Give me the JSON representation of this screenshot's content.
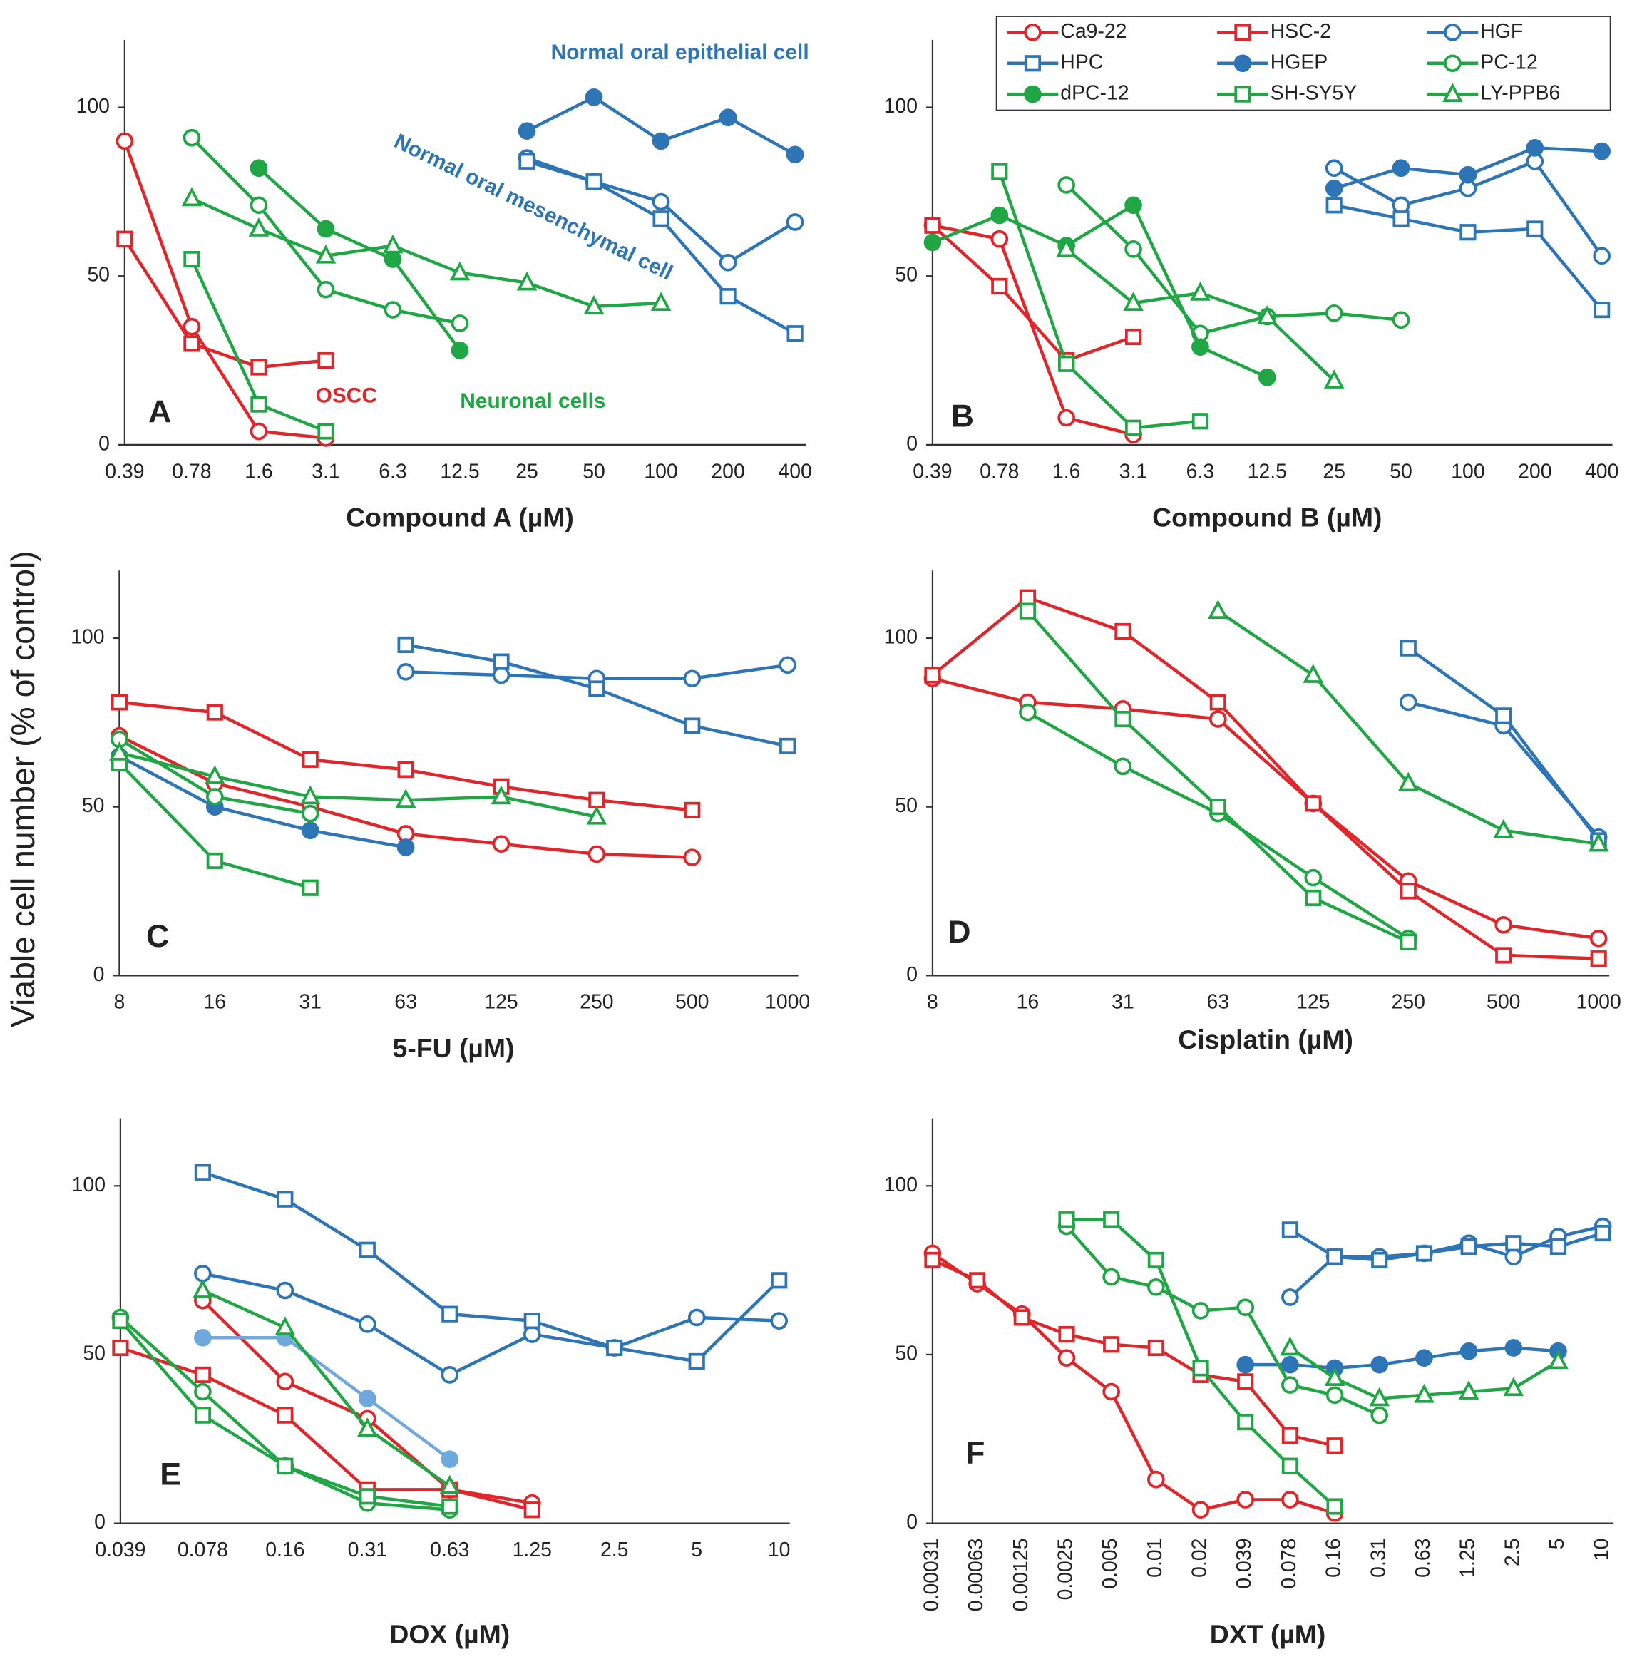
{
  "ylabel": "Viable cell number (% of control)",
  "chart_data": [
    {
      "type": "line",
      "label": "A",
      "xlabel": "Compound A (µM)",
      "categories": [
        "0.39",
        "0.78",
        "1.6",
        "3.1",
        "6.3",
        "12.5",
        "25",
        "50",
        "100",
        "200",
        "400"
      ],
      "ylim": [
        0,
        120
      ],
      "yticks": [
        0,
        50,
        100
      ],
      "annotations": [
        {
          "text": "Normal oral epithelial cell",
          "color": "#2e75b6"
        },
        {
          "text": "Normal oral mesenchymal cell",
          "color": "#2e75b6"
        },
        {
          "text": "OSCC",
          "color": "#e0262a"
        },
        {
          "text": "Neuronal cells",
          "color": "#21a645"
        }
      ],
      "series": [
        {
          "name": "Ca9-22",
          "color": "#e0262a",
          "marker": "circle-open",
          "values": [
            90,
            35,
            4,
            2,
            null,
            null,
            null,
            null,
            null,
            null,
            null
          ]
        },
        {
          "name": "HSC-2",
          "color": "#e0262a",
          "marker": "square-open",
          "values": [
            61,
            30,
            23,
            25,
            null,
            null,
            null,
            null,
            null,
            null,
            null
          ]
        },
        {
          "name": "HGF",
          "color": "#2e75b6",
          "marker": "circle-open",
          "values": [
            null,
            null,
            null,
            null,
            null,
            null,
            85,
            78,
            72,
            54,
            66
          ]
        },
        {
          "name": "HPC",
          "color": "#2e75b6",
          "marker": "square-open",
          "values": [
            null,
            null,
            null,
            null,
            null,
            null,
            84,
            78,
            67,
            44,
            33
          ]
        },
        {
          "name": "HGEP",
          "color": "#2e75b6",
          "marker": "circle-filled",
          "values": [
            null,
            null,
            null,
            null,
            null,
            null,
            93,
            103,
            90,
            97,
            86
          ]
        },
        {
          "name": "PC-12",
          "color": "#21a645",
          "marker": "circle-open",
          "values": [
            null,
            91,
            71,
            46,
            40,
            36,
            null,
            null,
            null,
            null,
            null
          ]
        },
        {
          "name": "dPC-12",
          "color": "#21a645",
          "marker": "circle-filled",
          "values": [
            null,
            null,
            82,
            64,
            55,
            28,
            null,
            null,
            null,
            null,
            null
          ]
        },
        {
          "name": "SH-SY5Y",
          "color": "#21a645",
          "marker": "square-open",
          "values": [
            null,
            55,
            12,
            4,
            null,
            null,
            null,
            null,
            null,
            null,
            null
          ]
        },
        {
          "name": "LY-PPB6",
          "color": "#21a645",
          "marker": "triangle-open",
          "values": [
            null,
            73,
            64,
            56,
            59,
            51,
            48,
            41,
            42,
            null,
            null
          ]
        }
      ]
    },
    {
      "type": "line",
      "label": "B",
      "xlabel": "Compound B (µM)",
      "categories": [
        "0.39",
        "0.78",
        "1.6",
        "3.1",
        "6.3",
        "12.5",
        "25",
        "50",
        "100",
        "200",
        "400"
      ],
      "ylim": [
        0,
        120
      ],
      "yticks": [
        0,
        50,
        100
      ],
      "legend": true,
      "series": [
        {
          "name": "Ca9-22",
          "color": "#e0262a",
          "marker": "circle-open",
          "values": [
            65,
            61,
            8,
            3,
            null,
            null,
            null,
            null,
            null,
            null,
            null
          ]
        },
        {
          "name": "HSC-2",
          "color": "#e0262a",
          "marker": "square-open",
          "values": [
            65,
            47,
            25,
            32,
            null,
            null,
            null,
            null,
            null,
            null,
            null
          ]
        },
        {
          "name": "HGF",
          "color": "#2e75b6",
          "marker": "circle-open",
          "values": [
            null,
            null,
            null,
            null,
            null,
            null,
            82,
            71,
            76,
            84,
            56
          ]
        },
        {
          "name": "HPC",
          "color": "#2e75b6",
          "marker": "square-open",
          "values": [
            null,
            null,
            null,
            null,
            null,
            null,
            71,
            67,
            63,
            64,
            40
          ]
        },
        {
          "name": "HGEP",
          "color": "#2e75b6",
          "marker": "circle-filled",
          "values": [
            null,
            null,
            null,
            null,
            null,
            null,
            76,
            82,
            80,
            88,
            87
          ]
        },
        {
          "name": "PC-12",
          "color": "#21a645",
          "marker": "circle-open",
          "values": [
            null,
            null,
            77,
            58,
            33,
            38,
            39,
            37,
            null,
            null,
            null
          ]
        },
        {
          "name": "dPC-12",
          "color": "#21a645",
          "marker": "circle-filled",
          "values": [
            60,
            68,
            59,
            71,
            29,
            20,
            null,
            null,
            null,
            null,
            null
          ]
        },
        {
          "name": "SH-SY5Y",
          "color": "#21a645",
          "marker": "square-open",
          "values": [
            null,
            81,
            24,
            5,
            7,
            null,
            null,
            null,
            null,
            null,
            null
          ]
        },
        {
          "name": "LY-PPB6",
          "color": "#21a645",
          "marker": "triangle-open",
          "values": [
            null,
            null,
            58,
            42,
            45,
            38,
            19,
            null,
            null,
            null,
            null
          ]
        }
      ]
    },
    {
      "type": "line",
      "label": "C",
      "xlabel": "5-FU (µM)",
      "categories": [
        "8",
        "16",
        "31",
        "63",
        "125",
        "250",
        "500",
        "1000"
      ],
      "ylim": [
        0,
        120
      ],
      "yticks": [
        0,
        50,
        100
      ],
      "series": [
        {
          "name": "Ca9-22",
          "color": "#e0262a",
          "marker": "circle-open",
          "values": [
            71,
            57,
            50,
            42,
            39,
            36,
            35,
            null
          ]
        },
        {
          "name": "HSC-2",
          "color": "#e0262a",
          "marker": "square-open",
          "values": [
            81,
            78,
            64,
            61,
            56,
            52,
            49,
            null
          ]
        },
        {
          "name": "HGF",
          "color": "#2e75b6",
          "marker": "circle-open",
          "values": [
            null,
            null,
            null,
            90,
            89,
            88,
            88,
            92
          ]
        },
        {
          "name": "HPC",
          "color": "#2e75b6",
          "marker": "square-open",
          "values": [
            null,
            null,
            null,
            98,
            93,
            85,
            74,
            68
          ]
        },
        {
          "name": "HGEP",
          "color": "#2e75b6",
          "marker": "circle-filled",
          "values": [
            65,
            50,
            43,
            38,
            null,
            null,
            null,
            null
          ]
        },
        {
          "name": "PC-12",
          "color": "#21a645",
          "marker": "circle-open",
          "values": [
            70,
            53,
            48,
            null,
            null,
            null,
            null,
            null
          ]
        },
        {
          "name": "SH-SY5Y",
          "color": "#21a645",
          "marker": "square-open",
          "values": [
            63,
            34,
            26,
            null,
            null,
            null,
            null,
            null
          ]
        },
        {
          "name": "LY-PPB6",
          "color": "#21a645",
          "marker": "triangle-open",
          "values": [
            66,
            59,
            53,
            52,
            53,
            47,
            null,
            null
          ]
        }
      ]
    },
    {
      "type": "line",
      "label": "D",
      "xlabel": "Cisplatin (µM)",
      "categories": [
        "8",
        "16",
        "31",
        "63",
        "125",
        "250",
        "500",
        "1000"
      ],
      "ylim": [
        0,
        120
      ],
      "yticks": [
        0,
        50,
        100
      ],
      "series": [
        {
          "name": "Ca9-22",
          "color": "#e0262a",
          "marker": "circle-open",
          "values": [
            88,
            81,
            79,
            76,
            51,
            28,
            15,
            11
          ]
        },
        {
          "name": "HSC-2",
          "color": "#e0262a",
          "marker": "square-open",
          "values": [
            89,
            112,
            102,
            81,
            51,
            25,
            6,
            5
          ]
        },
        {
          "name": "HGF",
          "color": "#2e75b6",
          "marker": "circle-open",
          "values": [
            null,
            null,
            null,
            null,
            null,
            81,
            74,
            41
          ]
        },
        {
          "name": "HPC",
          "color": "#2e75b6",
          "marker": "square-open",
          "values": [
            null,
            null,
            null,
            null,
            null,
            97,
            77,
            40
          ]
        },
        {
          "name": "PC-12",
          "color": "#21a645",
          "marker": "circle-open",
          "values": [
            null,
            78,
            62,
            48,
            29,
            11,
            null,
            null
          ]
        },
        {
          "name": "SH-SY5Y",
          "color": "#21a645",
          "marker": "square-open",
          "values": [
            null,
            108,
            76,
            50,
            23,
            10,
            null,
            null
          ]
        },
        {
          "name": "LY-PPB6",
          "color": "#21a645",
          "marker": "triangle-open",
          "values": [
            null,
            null,
            null,
            108,
            89,
            57,
            43,
            39
          ]
        }
      ]
    },
    {
      "type": "line",
      "label": "E",
      "xlabel": "DOX (µM)",
      "categories": [
        "0.039",
        "0.078",
        "0.16",
        "0.31",
        "0.63",
        "1.25",
        "2.5",
        "5",
        "10"
      ],
      "ylim": [
        0,
        120
      ],
      "yticks": [
        0,
        50,
        100
      ],
      "series": [
        {
          "name": "Ca9-22",
          "color": "#e0262a",
          "marker": "circle-open",
          "values": [
            null,
            66,
            42,
            31,
            10,
            6,
            null,
            null,
            null
          ]
        },
        {
          "name": "HSC-2",
          "color": "#e0262a",
          "marker": "square-open",
          "values": [
            52,
            44,
            32,
            10,
            10,
            4,
            null,
            null,
            null
          ]
        },
        {
          "name": "HGF",
          "color": "#2e75b6",
          "marker": "circle-open",
          "values": [
            null,
            74,
            69,
            59,
            44,
            56,
            52,
            61,
            60
          ]
        },
        {
          "name": "HPC",
          "color": "#2e75b6",
          "marker": "square-open",
          "values": [
            null,
            104,
            96,
            81,
            62,
            60,
            52,
            48,
            72
          ]
        },
        {
          "name": "HGEP",
          "color": "#6fa8dc",
          "marker": "circle-filled",
          "values": [
            null,
            55,
            55,
            37,
            19,
            null,
            null,
            null,
            null
          ]
        },
        {
          "name": "PC-12",
          "color": "#21a645",
          "marker": "circle-open",
          "values": [
            61,
            39,
            17,
            6,
            4,
            null,
            null,
            null,
            null
          ]
        },
        {
          "name": "SH-SY5Y",
          "color": "#21a645",
          "marker": "square-open",
          "values": [
            60,
            32,
            17,
            8,
            5,
            null,
            null,
            null,
            null
          ]
        },
        {
          "name": "LY-PPB6",
          "color": "#21a645",
          "marker": "triangle-open",
          "values": [
            null,
            69,
            58,
            28,
            11,
            null,
            null,
            null,
            null
          ]
        }
      ]
    },
    {
      "type": "line",
      "label": "F",
      "xlabel": "DXT (µM)",
      "rotate_xticks": true,
      "categories": [
        "0.00031",
        "0.00063",
        "0.00125",
        "0.0025",
        "0.005",
        "0.01",
        "0.02",
        "0.039",
        "0.078",
        "0.16",
        "0.31",
        "0.63",
        "1.25",
        "2.5",
        "5",
        "10"
      ],
      "ylim": [
        0,
        120
      ],
      "yticks": [
        0,
        50,
        100
      ],
      "series": [
        {
          "name": "Ca9-22",
          "color": "#e0262a",
          "marker": "circle-open",
          "values": [
            80,
            71,
            62,
            49,
            39,
            13,
            4,
            7,
            7,
            3,
            null,
            null,
            null,
            null,
            null,
            null
          ]
        },
        {
          "name": "HSC-2",
          "color": "#e0262a",
          "marker": "square-open",
          "values": [
            78,
            72,
            61,
            56,
            53,
            52,
            44,
            42,
            26,
            23,
            null,
            null,
            null,
            null,
            null,
            null
          ]
        },
        {
          "name": "HGF",
          "color": "#2e75b6",
          "marker": "circle-open",
          "values": [
            null,
            null,
            null,
            null,
            null,
            null,
            null,
            null,
            67,
            79,
            79,
            80,
            83,
            79,
            85,
            88
          ]
        },
        {
          "name": "HPC",
          "color": "#2e75b6",
          "marker": "square-open",
          "values": [
            null,
            null,
            null,
            null,
            null,
            null,
            null,
            null,
            87,
            79,
            78,
            80,
            82,
            83,
            82,
            86
          ]
        },
        {
          "name": "HGEP",
          "color": "#2e75b6",
          "marker": "circle-filled",
          "values": [
            null,
            null,
            null,
            null,
            null,
            null,
            null,
            47,
            47,
            46,
            47,
            49,
            51,
            52,
            51,
            null
          ]
        },
        {
          "name": "PC-12",
          "color": "#21a645",
          "marker": "circle-open",
          "values": [
            null,
            null,
            null,
            88,
            73,
            70,
            63,
            64,
            41,
            38,
            32,
            null,
            null,
            null,
            null,
            null
          ]
        },
        {
          "name": "SH-SY5Y",
          "color": "#21a645",
          "marker": "square-open",
          "values": [
            null,
            null,
            null,
            90,
            90,
            78,
            46,
            30,
            17,
            5,
            null,
            null,
            null,
            null,
            null,
            null
          ]
        },
        {
          "name": "LY-PPB6",
          "color": "#21a645",
          "marker": "triangle-open",
          "values": [
            null,
            null,
            null,
            null,
            null,
            null,
            null,
            null,
            52,
            43,
            37,
            38,
            39,
            40,
            48,
            null
          ]
        }
      ]
    }
  ]
}
